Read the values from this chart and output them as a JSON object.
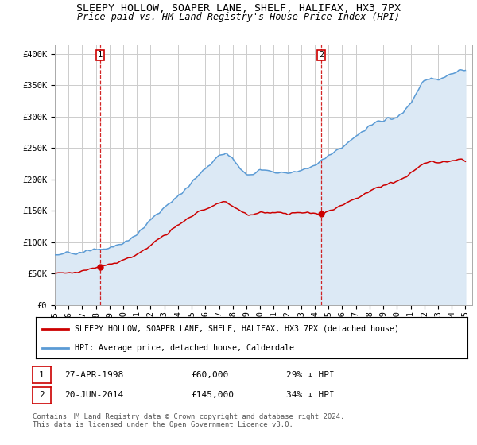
{
  "title": "SLEEPY HOLLOW, SOAPER LANE, SHELF, HALIFAX, HX3 7PX",
  "subtitle": "Price paid vs. HM Land Registry's House Price Index (HPI)",
  "ylabel_ticks": [
    "£0",
    "£50K",
    "£100K",
    "£150K",
    "£200K",
    "£250K",
    "£300K",
    "£350K",
    "£400K"
  ],
  "ytick_values": [
    0,
    50000,
    100000,
    150000,
    200000,
    250000,
    300000,
    350000,
    400000
  ],
  "ylim": [
    0,
    415000
  ],
  "xlim_start": 1995.0,
  "xlim_end": 2025.5,
  "sale1_x": 1998.32,
  "sale1_y": 60000,
  "sale2_x": 2014.47,
  "sale2_y": 145000,
  "legend_line1": "SLEEPY HOLLOW, SOAPER LANE, SHELF, HALIFAX, HX3 7PX (detached house)",
  "legend_line2": "HPI: Average price, detached house, Calderdale",
  "table_row1": [
    "1",
    "27-APR-1998",
    "£60,000",
    "29% ↓ HPI"
  ],
  "table_row2": [
    "2",
    "20-JUN-2014",
    "£145,000",
    "34% ↓ HPI"
  ],
  "footnote": "Contains HM Land Registry data © Crown copyright and database right 2024.\nThis data is licensed under the Open Government Licence v3.0.",
  "hpi_color": "#5b9bd5",
  "hpi_fill_color": "#dce9f5",
  "price_color": "#cc0000",
  "vline_color": "#cc0000",
  "background_color": "#ffffff",
  "grid_color": "#cccccc",
  "title_fontsize": 9.5,
  "subtitle_fontsize": 8.5,
  "tick_fontsize": 7.5,
  "xtick_years": [
    1995,
    1996,
    1997,
    1998,
    1999,
    2000,
    2001,
    2002,
    2003,
    2004,
    2005,
    2006,
    2007,
    2008,
    2009,
    2010,
    2011,
    2012,
    2013,
    2014,
    2015,
    2016,
    2017,
    2018,
    2019,
    2020,
    2021,
    2022,
    2023,
    2024,
    2025
  ]
}
